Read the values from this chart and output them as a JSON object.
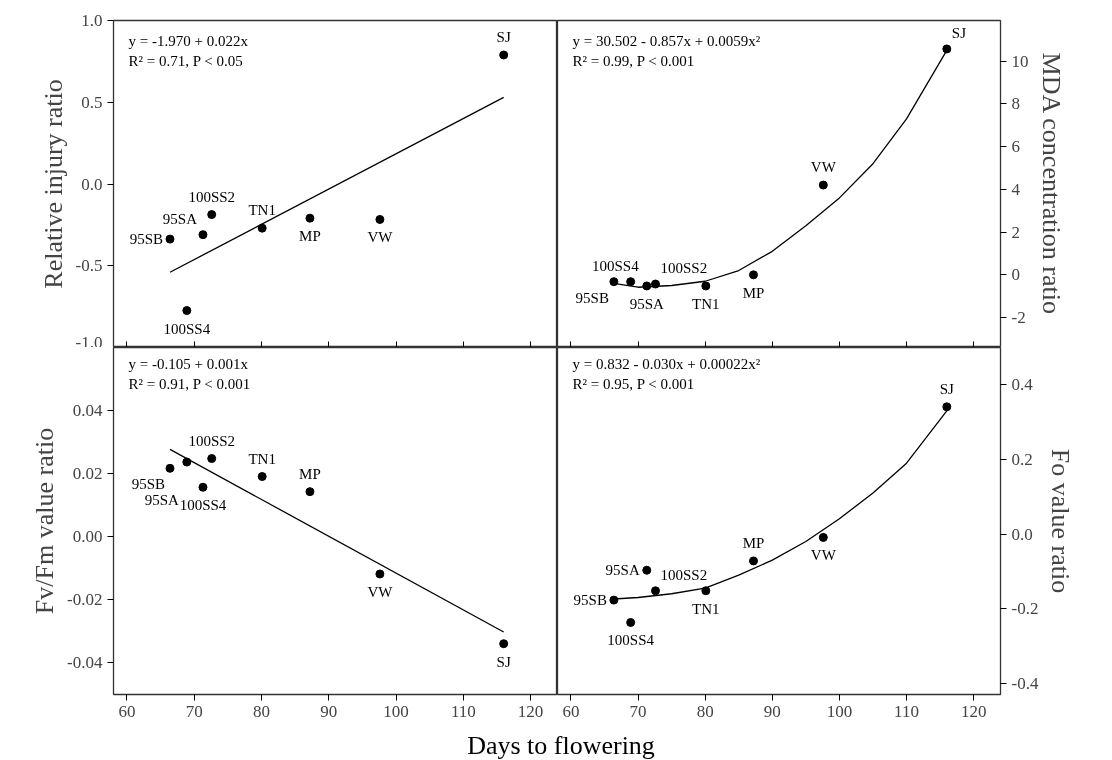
{
  "chart_data": [
    {
      "type": "scatter",
      "ylabel": "Relative injury ratio",
      "xlim": [
        58,
        124
      ],
      "xticks": [
        60,
        70,
        80,
        90,
        100,
        110,
        120
      ],
      "ylim": [
        -1,
        1
      ],
      "yticks": [
        {
          "value": -1,
          "label": "-1.0"
        },
        {
          "value": -0.5,
          "label": "-0.5"
        },
        {
          "value": 0,
          "label": "0.0"
        },
        {
          "value": 0.5,
          "label": "0.5"
        },
        {
          "value": 1,
          "label": "1.0"
        }
      ],
      "tick_labels": "y",
      "grid": false,
      "annotations": [
        "y = -1.970 + 0.022x",
        "R² = 0.71, P < 0.05",
        {
          "text": "95SB",
          "x": 66.4,
          "y": -0.337
        },
        {
          "text": "100SS4",
          "x": 68.9,
          "y": -0.774
        },
        {
          "text": "95SA",
          "x": 71.3,
          "y": -0.31
        },
        {
          "text": "100SS2",
          "x": 72.6,
          "y": -0.187
        },
        {
          "text": "TN1",
          "x": 80.1,
          "y": -0.27
        },
        {
          "text": "MP",
          "x": 87.2,
          "y": -0.209
        },
        {
          "text": "VW",
          "x": 97.6,
          "y": -0.217
        },
        {
          "text": "SJ",
          "x": 116.0,
          "y": 0.789
        }
      ],
      "series": [
        {
          "type": "scatter",
          "marker": "circle",
          "color": "#000000",
          "x": [
            66.4,
            68.9,
            71.3,
            72.6,
            80.1,
            87.2,
            97.6,
            116.0
          ],
          "values": [
            -0.337,
            -0.774,
            -0.31,
            -0.187,
            -0.27,
            -0.209,
            -0.217,
            0.789
          ]
        },
        {
          "type": "line",
          "marker": "none",
          "color": "#000000",
          "x": [
            66.4,
            116.0
          ],
          "values": [
            -0.54,
            0.53
          ]
        }
      ]
    },
    {
      "type": "scatter",
      "ylabel": "MDA concentration ratio",
      "xlim": [
        58,
        124
      ],
      "xticks": [
        60,
        70,
        80,
        90,
        100,
        110,
        120
      ],
      "ylim": [
        -3.4,
        11.9
      ],
      "yticks": [
        -2,
        0,
        2,
        4,
        6,
        8,
        10
      ],
      "tick_labels": "y",
      "grid": false,
      "annotations": [
        "y = 30.502 - 0.857x + 0.0059x²",
        "R² = 0.99, P < 0.001",
        {
          "text": "95SB",
          "x": 66.4,
          "y": -0.32
        },
        {
          "text": "100SS4",
          "x": 68.9,
          "y": -0.32
        },
        {
          "text": "95SA",
          "x": 71.3,
          "y": -0.52
        },
        {
          "text": "100SS2",
          "x": 72.6,
          "y": -0.43
        },
        {
          "text": "TN1",
          "x": 80.1,
          "y": -0.52
        },
        {
          "text": "MP",
          "x": 87.2,
          "y": 0.0
        },
        {
          "text": "VW",
          "x": 97.6,
          "y": 4.2
        },
        {
          "text": "SJ",
          "x": 116.0,
          "y": 10.57
        }
      ],
      "series": [
        {
          "type": "scatter",
          "marker": "circle",
          "color": "#000000",
          "x": [
            66.4,
            68.9,
            71.3,
            72.6,
            80.1,
            87.2,
            97.6,
            116.0
          ],
          "values": [
            -0.32,
            -0.32,
            -0.52,
            -0.43,
            -0.52,
            0.0,
            4.2,
            10.57
          ]
        },
        {
          "type": "line",
          "marker": "none",
          "color": "#000000",
          "x": [
            66.4,
            70,
            75,
            80,
            85,
            90,
            95,
            100,
            105,
            110,
            116.0
          ],
          "values": [
            -0.4,
            -0.58,
            -0.5,
            -0.3,
            0.2,
            1.1,
            2.3,
            3.6,
            5.2,
            7.3,
            10.5
          ]
        }
      ]
    },
    {
      "type": "scatter",
      "xlabel": "Days to flowering",
      "ylabel": "Fv/Fm value ratio",
      "xlim": [
        58,
        124
      ],
      "xticks": [
        60,
        70,
        80,
        90,
        100,
        110,
        120
      ],
      "ylim": [
        -0.05,
        0.06
      ],
      "yticks": [
        {
          "value": -0.04,
          "label": "-0.04"
        },
        {
          "value": -0.02,
          "label": "-0.02"
        },
        {
          "value": 0,
          "label": "0.00"
        },
        {
          "value": 0.02,
          "label": "0.02"
        },
        {
          "value": 0.04,
          "label": "0.04"
        }
      ],
      "grid": false,
      "annotations": [
        "y = -0.105 + 0.001x",
        "R² = 0.91, P < 0.001",
        {
          "text": "95SB",
          "x": 66.4,
          "y": 0.0217
        },
        {
          "text": "95SA",
          "x": 68.9,
          "y": 0.0237
        },
        {
          "text": "100SS4",
          "x": 71.3,
          "y": 0.0157
        },
        {
          "text": "100SS2",
          "x": 72.6,
          "y": 0.0248
        },
        {
          "text": "TN1",
          "x": 80.1,
          "y": 0.0191
        },
        {
          "text": "MP",
          "x": 87.2,
          "y": 0.0143
        },
        {
          "text": "VW",
          "x": 97.6,
          "y": -0.0118
        },
        {
          "text": "SJ",
          "x": 116.0,
          "y": -0.0339
        }
      ],
      "series": [
        {
          "type": "scatter",
          "marker": "circle",
          "color": "#000000",
          "x": [
            66.4,
            68.9,
            71.3,
            72.6,
            80.1,
            87.2,
            97.6,
            116.0
          ],
          "values": [
            0.0217,
            0.0237,
            0.0157,
            0.0248,
            0.0191,
            0.0143,
            -0.0118,
            -0.0339
          ]
        },
        {
          "type": "line",
          "marker": "none",
          "color": "#000000",
          "x": [
            66.4,
            116.0
          ],
          "values": [
            0.0277,
            -0.0302
          ]
        }
      ]
    },
    {
      "type": "scatter",
      "ylabel": "Fo value ratio",
      "xlim": [
        58,
        124
      ],
      "xticks": [
        60,
        70,
        80,
        90,
        100,
        110,
        120
      ],
      "ylim": [
        -0.43,
        0.5
      ],
      "yticks": [
        {
          "value": -0.4,
          "label": "-0.4"
        },
        {
          "value": -0.2,
          "label": "-0.2"
        },
        {
          "value": 0,
          "label": "0.0"
        },
        {
          "value": 0.2,
          "label": "0.2"
        },
        {
          "value": 0.4,
          "label": "0.4"
        }
      ],
      "grid": false,
      "annotations": [
        "y = 0.832 - 0.030x + 0.00022x²",
        "R² = 0.95, P < 0.001",
        {
          "text": "95SB",
          "x": 66.4,
          "y": -0.177
        },
        {
          "text": "100SS4",
          "x": 68.9,
          "y": -0.237
        },
        {
          "text": "95SA",
          "x": 71.3,
          "y": -0.097
        },
        {
          "text": "100SS2",
          "x": 72.6,
          "y": -0.152
        },
        {
          "text": "TN1",
          "x": 80.1,
          "y": -0.152
        },
        {
          "text": "MP",
          "x": 87.2,
          "y": -0.072
        },
        {
          "text": "VW",
          "x": 97.6,
          "y": -0.009
        },
        {
          "text": "SJ",
          "x": 116.0,
          "y": 0.341
        }
      ],
      "series": [
        {
          "type": "scatter",
          "marker": "circle",
          "color": "#000000",
          "x": [
            66.4,
            68.9,
            71.3,
            72.6,
            80.1,
            87.2,
            97.6,
            116.0
          ],
          "values": [
            -0.177,
            -0.237,
            -0.097,
            -0.152,
            -0.152,
            -0.072,
            -0.009,
            0.341
          ]
        },
        {
          "type": "line",
          "marker": "none",
          "color": "#000000",
          "x": [
            66.4,
            70,
            75,
            80,
            85,
            90,
            95,
            100,
            105,
            110,
            116.0
          ],
          "values": [
            -0.174,
            -0.17,
            -0.16,
            -0.145,
            -0.11,
            -0.07,
            -0.02,
            0.041,
            0.11,
            0.19,
            0.33
          ]
        }
      ]
    }
  ]
}
